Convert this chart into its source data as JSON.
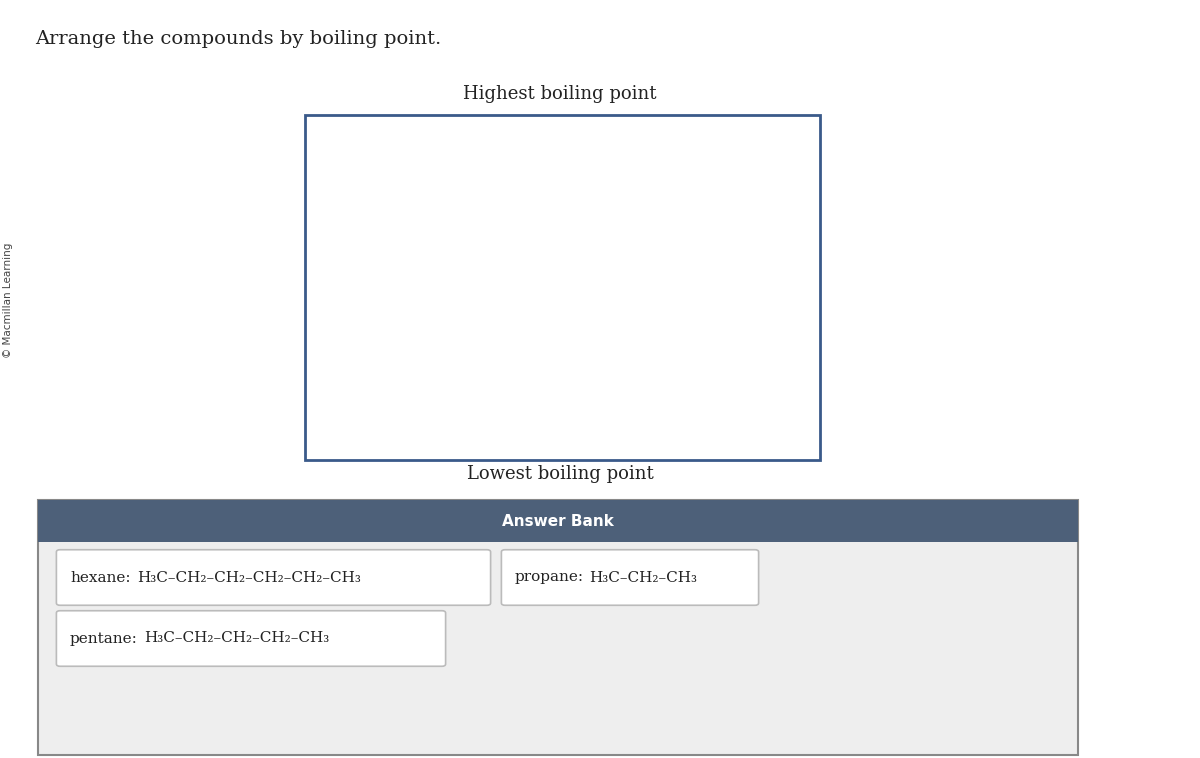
{
  "title": "Arrange the compounds by boiling point.",
  "copyright": "© Macmillan Learning",
  "highest_label": "Highest boiling point",
  "lowest_label": "Lowest boiling point",
  "answer_bank_label": "Answer Bank",
  "answer_bank_bg": "#4d6079",
  "answer_bank_text_color": "#ffffff",
  "answer_bank_section_bg": "#eeeeee",
  "box_border_color": "#3a5a8a",
  "card_border_color": "#bbbbbb",
  "card_bg": "#ffffff",
  "bg_color": "#ffffff",
  "fig_w": 12.0,
  "fig_h": 7.58,
  "dpi": 100,
  "compounds": [
    {
      "name": "hexane",
      "formula": "H₃C–CH₂–CH₂–CH₂–CH₂–CH₃"
    },
    {
      "name": "propane",
      "formula": "H₃C–CH₂–CH₃"
    },
    {
      "name": "pentane",
      "formula": "H₃C–CH₂–CH₂–CH₂–CH₃"
    }
  ]
}
